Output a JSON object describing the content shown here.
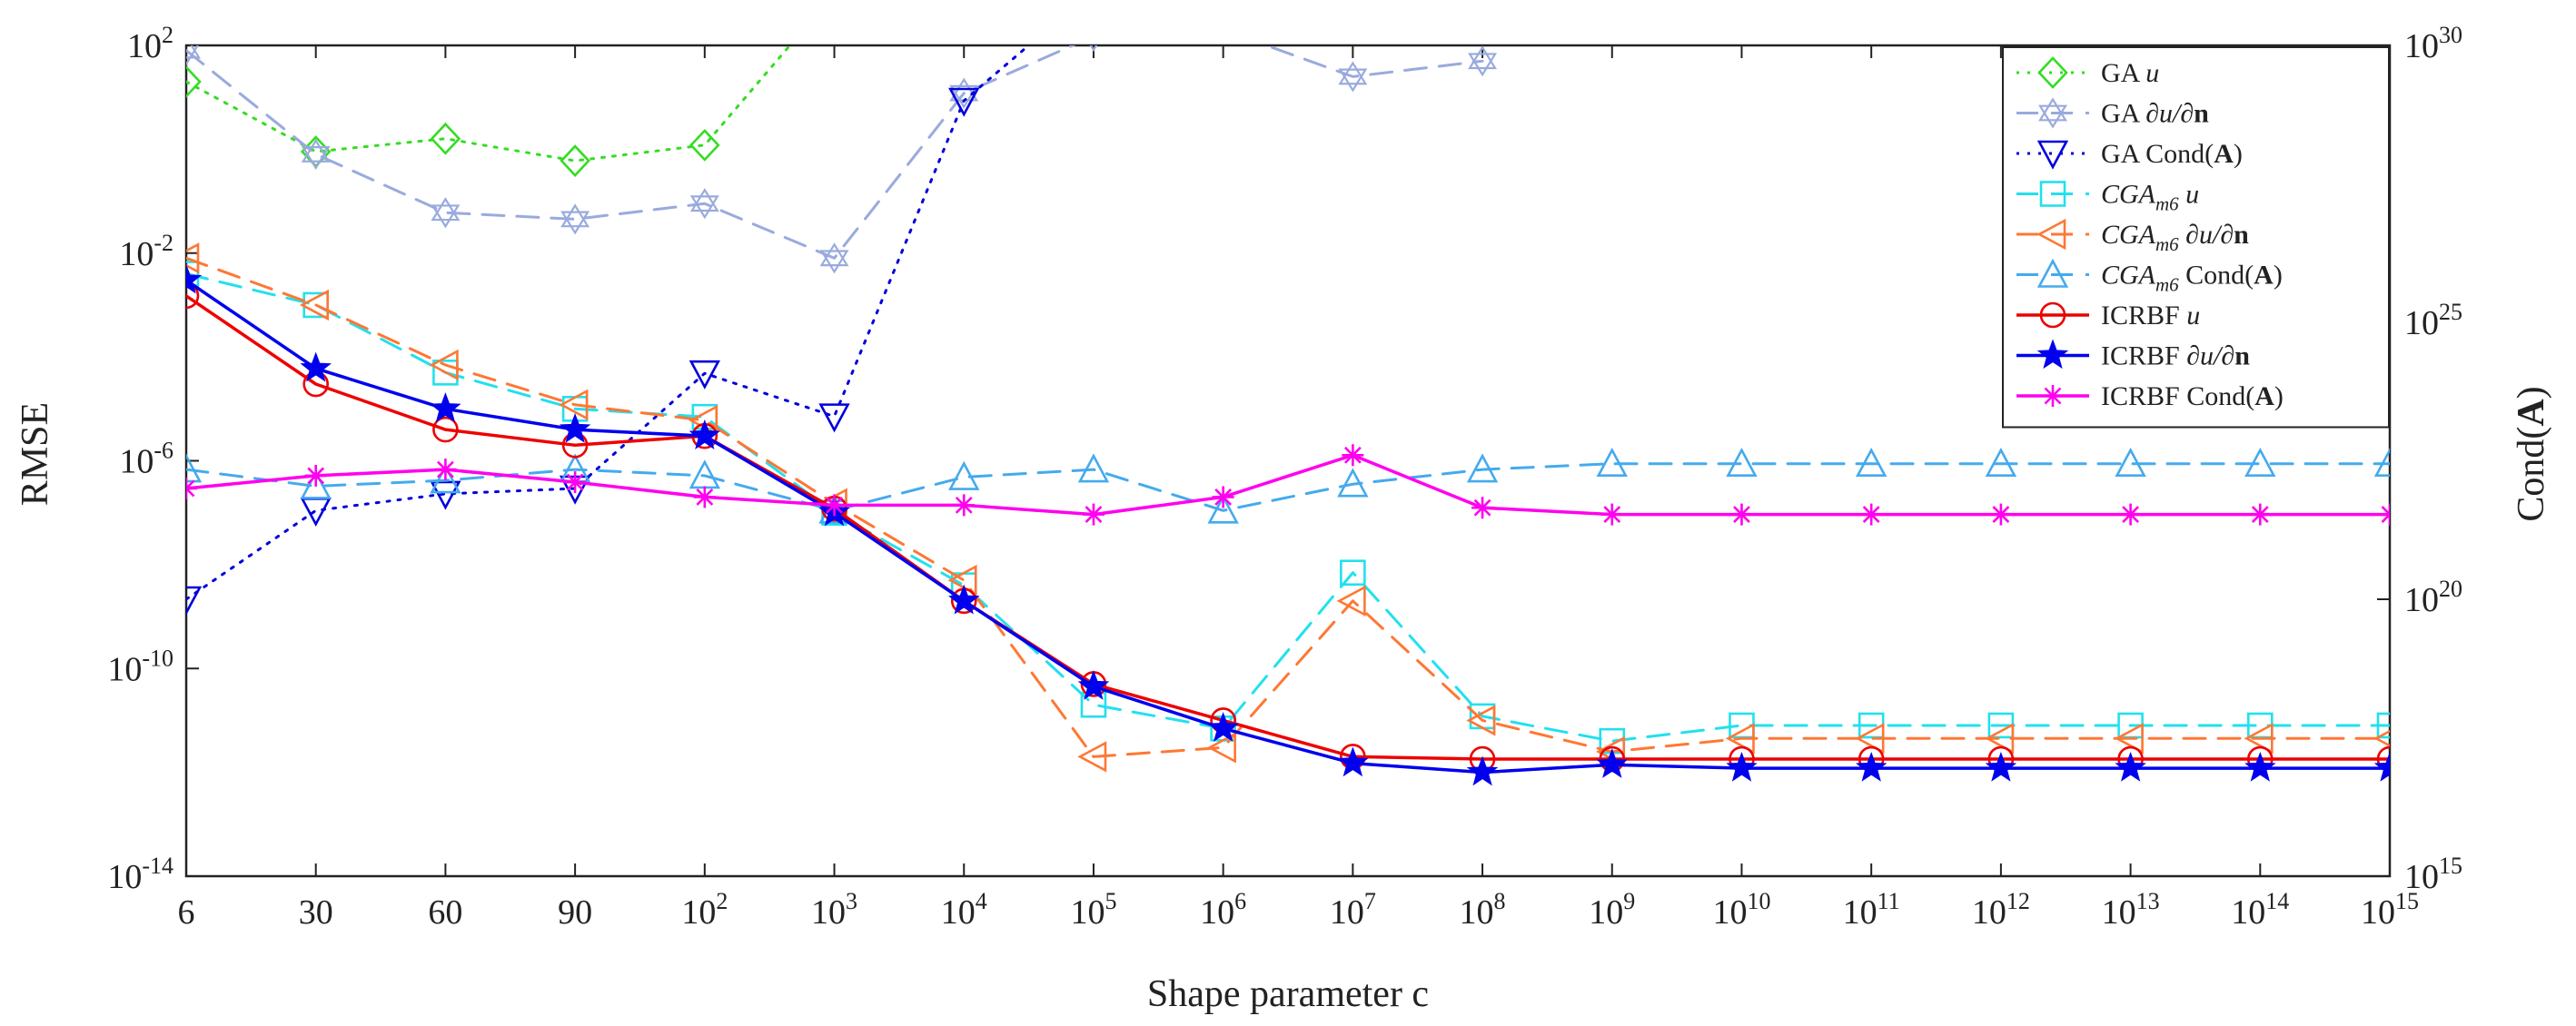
{
  "chart_data": {
    "type": "line",
    "xlabel": "Shape parameter c",
    "ylabel_left": "RMSE",
    "ylabel_right": "Cond(A)",
    "y_left_scale": "log",
    "y_right_scale": "log",
    "ylim_left": [
      1e-14,
      100
    ],
    "ylim_right": [
      1000000000000000.0,
      1e+30
    ],
    "categories": [
      "6",
      "30",
      "60",
      "90",
      "1e2",
      "1e3",
      "1e4",
      "1e5",
      "1e6",
      "1e7",
      "1e8",
      "1e9",
      "1e10",
      "1e11",
      "1e12",
      "1e13",
      "1e14",
      "1e15"
    ],
    "x_tick_labels": [
      {
        "base": "6",
        "exp": ""
      },
      {
        "base": "30",
        "exp": ""
      },
      {
        "base": "60",
        "exp": ""
      },
      {
        "base": "90",
        "exp": ""
      },
      {
        "base": "10",
        "exp": "2"
      },
      {
        "base": "10",
        "exp": "3"
      },
      {
        "base": "10",
        "exp": "4"
      },
      {
        "base": "10",
        "exp": "5"
      },
      {
        "base": "10",
        "exp": "6"
      },
      {
        "base": "10",
        "exp": "7"
      },
      {
        "base": "10",
        "exp": "8"
      },
      {
        "base": "10",
        "exp": "9"
      },
      {
        "base": "10",
        "exp": "10"
      },
      {
        "base": "10",
        "exp": "11"
      },
      {
        "base": "10",
        "exp": "12"
      },
      {
        "base": "10",
        "exp": "13"
      },
      {
        "base": "10",
        "exp": "14"
      },
      {
        "base": "10",
        "exp": "15"
      }
    ],
    "y_left_ticks": [
      {
        "value": 1e-14,
        "base": "10",
        "exp": "-14"
      },
      {
        "value": 1e-10,
        "base": "10",
        "exp": "-10"
      },
      {
        "value": 1e-06,
        "base": "10",
        "exp": "-6"
      },
      {
        "value": 0.01,
        "base": "10",
        "exp": "-2"
      },
      {
        "value": 100,
        "base": "10",
        "exp": "2"
      }
    ],
    "y_right_ticks": [
      {
        "value": 1000000000000000.0,
        "base": "10",
        "exp": "15"
      },
      {
        "value": 1e+20,
        "base": "10",
        "exp": "20"
      },
      {
        "value": 1e+25,
        "base": "10",
        "exp": "25"
      },
      {
        "value": 1e+30,
        "base": "10",
        "exp": "30"
      }
    ],
    "legend_position": "top-right",
    "series": [
      {
        "name": "GA u",
        "legend": {
          "main": "GA ",
          "italic": "u"
        },
        "axis": "left",
        "color": "#33dd22",
        "dash": "3 9",
        "marker": "diamond",
        "line_width": 3,
        "values": [
          20,
          0.9,
          1.6,
          0.6,
          1.2,
          1000,
          null,
          null,
          null,
          null,
          null,
          null,
          null,
          null,
          null,
          null,
          null,
          null
        ]
      },
      {
        "name": "GA ∂u/∂n",
        "legend": {
          "main": "GA ",
          "rest": "∂u/∂",
          "bold": "n"
        },
        "axis": "left",
        "color": "#99aadd",
        "dash": "24 14",
        "marker": "hexagram",
        "line_width": 3,
        "values": [
          80,
          0.8,
          0.06,
          0.045,
          0.09,
          0.008,
          12,
          150,
          200,
          25,
          50,
          null,
          null,
          null,
          null,
          null,
          null,
          null
        ]
      },
      {
        "name": "GA Cond(A)",
        "legend": {
          "main": "GA Cond(",
          "bold": "A",
          "rest": ")"
        },
        "axis": "right",
        "color": "#0000dd",
        "dash": "3 9",
        "marker": "triangle-down",
        "line_width": 3,
        "values": [
          1e+20,
          4e+21,
          8e+21,
          1e+22,
          1.2e+24,
          2e+23,
          1e+29,
          1e+31,
          null,
          null,
          null,
          null,
          null,
          null,
          null,
          null,
          null,
          null
        ]
      },
      {
        "name": "CGA m6 u",
        "legend": {
          "main": "CGA",
          "sub": "m6",
          "italic": "u"
        },
        "axis": "left",
        "color": "#22e0ee",
        "dash": "24 14",
        "marker": "square",
        "line_width": 3,
        "values": [
          0.004,
          0.001,
          5e-05,
          1e-05,
          7e-06,
          1e-07,
          4e-09,
          2e-11,
          7e-12,
          7e-09,
          1.2e-11,
          4e-12,
          8e-12,
          8e-12,
          8e-12,
          8e-12,
          8e-12,
          8e-12
        ]
      },
      {
        "name": "CGA m6 ∂u/∂n",
        "legend": {
          "main": "CGA",
          "sub": "m6",
          "rest": "∂u/∂",
          "bold": "n"
        },
        "axis": "left",
        "color": "#ff7733",
        "dash": "24 14",
        "marker": "triangle-left",
        "line_width": 3,
        "values": [
          0.008,
          0.001,
          7e-05,
          1.2e-05,
          6e-06,
          1.5e-07,
          5e-09,
          2e-12,
          3e-12,
          2e-09,
          1e-11,
          2.5e-12,
          4.5e-12,
          4.5e-12,
          4.5e-12,
          4.5e-12,
          4.5e-12,
          4.5e-12
        ]
      },
      {
        "name": "CGA m6 Cond(A)",
        "legend": {
          "main": "CGA",
          "sub": "m6",
          "rest": "Cond(",
          "bold": "A",
          "tail": ")"
        },
        "axis": "right",
        "color": "#44aaee",
        "dash": "24 14",
        "marker": "triangle-up",
        "line_width": 3,
        "values": [
          2.2e+22,
          1.1e+22,
          1.4e+22,
          2.2e+22,
          1.7e+22,
          4e+21,
          1.6e+22,
          2.2e+22,
          4e+21,
          1.2e+22,
          2.2e+22,
          2.8e+22,
          2.8e+22,
          2.8e+22,
          2.8e+22,
          2.8e+22,
          2.8e+22,
          2.8e+22
        ]
      },
      {
        "name": "ICRBF u",
        "legend": {
          "main": "ICRBF ",
          "italic": "u"
        },
        "axis": "left",
        "color": "#ee0000",
        "dash": "",
        "marker": "circle",
        "line_width": 3.5,
        "values": [
          0.0015,
          3e-05,
          4e-06,
          2e-06,
          3e-06,
          1.2e-07,
          2e-09,
          5e-11,
          1e-11,
          2e-12,
          1.8e-12,
          1.8e-12,
          1.8e-12,
          1.8e-12,
          1.8e-12,
          1.8e-12,
          1.8e-12,
          1.8e-12
        ]
      },
      {
        "name": "ICRBF ∂u/∂n",
        "legend": {
          "main": "ICRBF ",
          "rest": "∂u/∂",
          "bold": "n"
        },
        "axis": "left",
        "color": "#0000ee",
        "dash": "",
        "marker": "star",
        "line_width": 3.5,
        "values": [
          0.003,
          6e-05,
          1e-05,
          4e-06,
          3e-06,
          1e-07,
          2e-09,
          4.5e-11,
          7e-12,
          1.5e-12,
          1e-12,
          1.4e-12,
          1.2e-12,
          1.2e-12,
          1.2e-12,
          1.2e-12,
          1.2e-12,
          1.2e-12
        ]
      },
      {
        "name": "ICRBF Cond(A)",
        "legend": {
          "main": "ICRBF Cond(",
          "bold": "A",
          "rest": ")"
        },
        "axis": "right",
        "color": "#ff00ee",
        "dash": "",
        "marker": "asterisk",
        "line_width": 3.5,
        "values": [
          1e+22,
          1.7e+22,
          2.2e+22,
          1.3e+22,
          7e+21,
          5e+21,
          5e+21,
          3.4e+21,
          7e+21,
          4e+22,
          4.5e+21,
          3.4e+21,
          3.4e+21,
          3.4e+21,
          3.4e+21,
          3.4e+21,
          3.4e+21,
          3.4e+21
        ]
      }
    ]
  }
}
